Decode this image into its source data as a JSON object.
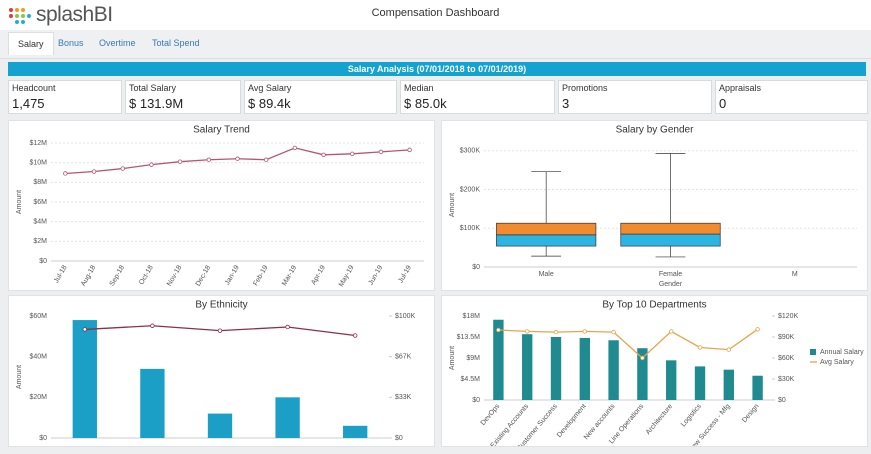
{
  "header": {
    "logo": "splashBI",
    "title": "Compensation Dashboard"
  },
  "tabs": [
    "Salary",
    "Bonus",
    "Overtime",
    "Total Spend"
  ],
  "banner": "Salary Analysis (07/01/2018 to 07/01/2019)",
  "kpis": [
    {
      "label": "Headcount",
      "value": "1,475"
    },
    {
      "label": "Total Salary",
      "value": "$ 131.9M"
    },
    {
      "label": "Avg Salary",
      "value": "$ 89.4k"
    },
    {
      "label": "Median",
      "value": "$ 85.0k"
    },
    {
      "label": "Promotions",
      "value": "3"
    },
    {
      "label": "Appraisals",
      "value": "0"
    }
  ],
  "chart_data": [
    {
      "type": "line",
      "title": "Salary Trend",
      "y_label": "Amount",
      "categories": [
        "Jul-18",
        "Aug-18",
        "Sep-18",
        "Oct-18",
        "Nov-18",
        "Dec-18",
        "Jan-19",
        "Feb-19",
        "Mar-19",
        "Apr-19",
        "May-19",
        "Jun-19",
        "Jul-19"
      ],
      "values": [
        8900000,
        9100000,
        9400000,
        9800000,
        10100000,
        10300000,
        10400000,
        10300000,
        11500000,
        10800000,
        10900000,
        11100000,
        11300000
      ],
      "color": "#b5566f",
      "ylim": [
        0,
        12000000
      ],
      "yticks": [
        {
          "value": 0,
          "label": "$0"
        },
        {
          "value": 2000000,
          "label": "$2M"
        },
        {
          "value": 4000000,
          "label": "$4M"
        },
        {
          "value": 6000000,
          "label": "$6M"
        },
        {
          "value": 8000000,
          "label": "$8M"
        },
        {
          "value": 10000000,
          "label": "$10M"
        },
        {
          "value": 12000000,
          "label": "$12M"
        }
      ],
      "grid": true
    },
    {
      "type": "box",
      "title": "Salary by Gender",
      "y_label": "Amount",
      "x_label": "Gender",
      "categories": [
        "Male",
        "Female",
        "M"
      ],
      "min": [
        28000,
        26000,
        null
      ],
      "q1": [
        54000,
        54000,
        null
      ],
      "median": [
        83000,
        85000,
        null
      ],
      "q3": [
        113000,
        113000,
        null
      ],
      "max": [
        246000,
        293000,
        null
      ],
      "color_upper": "#f28a2e",
      "color_lower": "#2cb5e3",
      "ylim": [
        0,
        320000
      ],
      "yticks": [
        {
          "value": 0,
          "label": "$0"
        },
        {
          "value": 100000,
          "label": "$100K"
        },
        {
          "value": 200000,
          "label": "$200K"
        },
        {
          "value": 300000,
          "label": "$300K"
        }
      ],
      "grid": true
    },
    {
      "type": "combo",
      "title": "By Ethnicity",
      "y_label": "Amount",
      "categories": [
        null,
        null,
        null,
        null,
        null
      ],
      "series": [
        {
          "type": "bar",
          "color": "#1b9fc6",
          "values": [
            58000000,
            34000000,
            12000000,
            20000000,
            6000000
          ]
        },
        {
          "type": "line",
          "axis": "y2",
          "color": "#8b2f4c",
          "values": [
            89000,
            92000,
            88000,
            91000,
            84000
          ]
        }
      ],
      "ylim": [
        0,
        60000000
      ],
      "yticks": [
        {
          "value": 0,
          "label": "$0"
        },
        {
          "value": 20000000,
          "label": "$20M"
        },
        {
          "value": 40000000,
          "label": "$40M"
        },
        {
          "value": 60000000,
          "label": "$60M"
        }
      ],
      "y2lim": [
        0,
        100000
      ],
      "y2ticks": [
        {
          "value": 0,
          "label": "$0"
        },
        {
          "value": 33333,
          "label": "$33K"
        },
        {
          "value": 66667,
          "label": "$67K"
        },
        {
          "value": 100000,
          "label": "$100K"
        }
      ],
      "grid": false
    },
    {
      "type": "combo",
      "title": "By Top 10 Departments",
      "y_label": "Amount",
      "categories": [
        "DevOps",
        "Existing Accounts",
        "Customer Success",
        "Development",
        "New accounts",
        "Line Operations",
        "Architecture",
        "Logistics",
        "New Success - Mfg",
        "Design"
      ],
      "series": [
        {
          "type": "bar",
          "name": "Annual Salary",
          "color": "#1f8a8f",
          "values": [
            17200000,
            14100000,
            13500000,
            13300000,
            12800000,
            11100000,
            8500000,
            7200000,
            6500000,
            5200000
          ]
        },
        {
          "type": "line",
          "name": "Avg Salary",
          "axis": "y2",
          "color": "#e8a44a",
          "values": [
            100000,
            98000,
            97000,
            98000,
            97000,
            60000,
            98000,
            75000,
            72000,
            101000
          ]
        }
      ],
      "ylim": [
        0,
        18000000
      ],
      "yticks": [
        {
          "value": 0,
          "label": "$0"
        },
        {
          "value": 4500000,
          "label": "$4.5M"
        },
        {
          "value": 9000000,
          "label": "$9M"
        },
        {
          "value": 13500000,
          "label": "$13.5M"
        },
        {
          "value": 18000000,
          "label": "$18M"
        }
      ],
      "y2lim": [
        0,
        120000
      ],
      "y2ticks": [
        {
          "value": 0,
          "label": "$0"
        },
        {
          "value": 30000,
          "label": "$30K"
        },
        {
          "value": 60000,
          "label": "$60K"
        },
        {
          "value": 90000,
          "label": "$90K"
        },
        {
          "value": 120000,
          "label": "$120K"
        }
      ],
      "grid": false,
      "legend": "right"
    }
  ]
}
